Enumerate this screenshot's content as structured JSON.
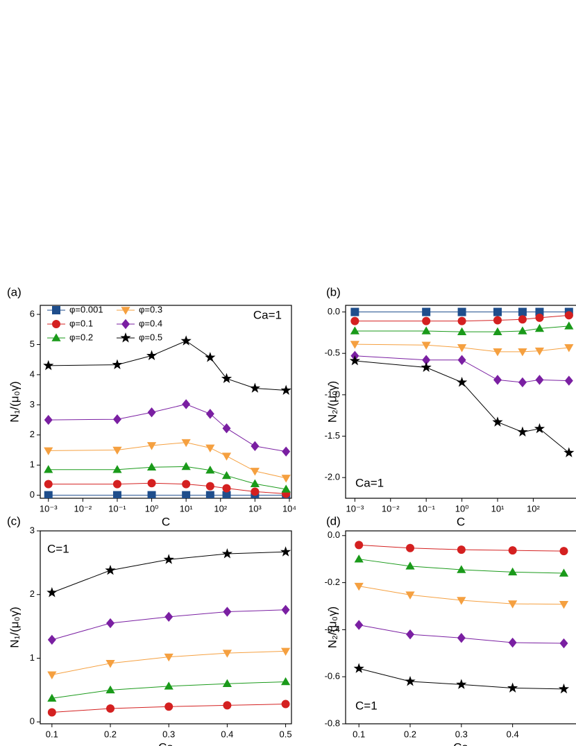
{
  "chart_data": [
    {
      "type": "line",
      "panel_label": "(a)",
      "x_label": "C",
      "y_label": "N₁/(μ₀γ̇)",
      "annotation": "Ca=1",
      "log_x": true,
      "legend": "top-left",
      "x": [
        0.001,
        0.1,
        1,
        10,
        50,
        150,
        1000,
        8000
      ],
      "xlim": [
        0.00058,
        11500
      ],
      "ylim": [
        -0.1,
        6.3
      ],
      "xticks": [
        {
          "value": 0.001,
          "label": "10⁻³"
        },
        {
          "value": 0.01,
          "label": "10⁻²"
        },
        {
          "value": 0.1,
          "label": "10⁻¹"
        },
        {
          "value": 1,
          "label": "10⁰"
        },
        {
          "value": 10,
          "label": "10¹"
        },
        {
          "value": 100,
          "label": "10²"
        },
        {
          "value": 1000,
          "label": "10³"
        },
        {
          "value": 10000,
          "label": "10⁴"
        }
      ],
      "yticks": [
        0,
        1,
        2,
        3,
        4,
        5,
        6
      ],
      "series": [
        {
          "name": "φ=0.001",
          "color": "#1f4e8c",
          "marker": "square",
          "values": [
            0,
            0,
            0,
            0,
            0,
            0,
            0,
            0
          ]
        },
        {
          "name": "φ=0.1",
          "color": "#d42020",
          "marker": "circle",
          "values": [
            0.37,
            0.37,
            0.4,
            0.37,
            0.3,
            0.23,
            0.12,
            0.05
          ]
        },
        {
          "name": "φ=0.2",
          "color": "#1a9a1a",
          "marker": "triangle-up",
          "values": [
            0.85,
            0.85,
            0.93,
            0.95,
            0.83,
            0.65,
            0.38,
            0.2
          ]
        },
        {
          "name": "φ=0.3",
          "color": "#f5a040",
          "marker": "triangle-down",
          "values": [
            1.48,
            1.5,
            1.65,
            1.75,
            1.57,
            1.3,
            0.8,
            0.57
          ]
        },
        {
          "name": "φ=0.4",
          "color": "#7a1fa2",
          "marker": "diamond",
          "values": [
            2.5,
            2.52,
            2.75,
            3.02,
            2.7,
            2.22,
            1.63,
            1.45
          ]
        },
        {
          "name": "φ=0.5",
          "color": "#000000",
          "marker": "star",
          "values": [
            4.3,
            4.33,
            4.63,
            5.12,
            4.57,
            3.87,
            3.55,
            3.48
          ]
        }
      ]
    },
    {
      "type": "line",
      "panel_label": "(b)",
      "x_label": "C",
      "y_label": "N₂/(μ₀γ̇)",
      "annotation": "Ca=1",
      "log_x": true,
      "x": [
        0.001,
        0.1,
        1,
        10,
        50,
        150,
        1000
      ],
      "xlim": [
        0.00055,
        2700
      ],
      "ylim": [
        -2.25,
        0.08
      ],
      "xticks": [
        {
          "value": 0.001,
          "label": "10⁻³"
        },
        {
          "value": 0.01,
          "label": "10⁻²"
        },
        {
          "value": 0.1,
          "label": "10⁻¹"
        },
        {
          "value": 1,
          "label": "10⁰"
        },
        {
          "value": 10,
          "label": "10¹"
        },
        {
          "value": 100,
          "label": "10²"
        }
      ],
      "yticks": [
        {
          "value": 0,
          "label": "0.0"
        },
        -0.5,
        {
          "value": -1,
          "label": "-1.0"
        },
        -1.5,
        {
          "value": -2,
          "label": "-2.0"
        }
      ],
      "series": [
        {
          "color": "#1f4e8c",
          "marker": "square",
          "values": [
            0,
            0,
            0,
            0,
            0,
            0,
            0
          ]
        },
        {
          "color": "#d42020",
          "marker": "circle",
          "values": [
            -0.11,
            -0.11,
            -0.11,
            -0.1,
            -0.09,
            -0.07,
            -0.04
          ]
        },
        {
          "color": "#1a9a1a",
          "marker": "triangle-up",
          "values": [
            -0.23,
            -0.23,
            -0.24,
            -0.24,
            -0.23,
            -0.2,
            -0.17
          ]
        },
        {
          "color": "#f5a040",
          "marker": "triangle-down",
          "values": [
            -0.39,
            -0.4,
            -0.43,
            -0.48,
            -0.48,
            -0.47,
            -0.43
          ]
        },
        {
          "color": "#7a1fa2",
          "marker": "diamond",
          "values": [
            -0.53,
            -0.58,
            -0.58,
            -0.82,
            -0.85,
            -0.82,
            -0.83
          ]
        },
        {
          "color": "#000000",
          "marker": "star",
          "values": [
            -0.59,
            -0.67,
            -0.85,
            -1.33,
            -1.45,
            -1.41,
            -1.7
          ]
        }
      ]
    },
    {
      "type": "line",
      "panel_label": "(c)",
      "x_label": "Ca",
      "y_label": "N₁/(μ₀γ̇)",
      "annotation": "C=1",
      "log_x": false,
      "x": [
        0.1,
        0.2,
        0.3,
        0.4,
        0.5
      ],
      "xlim": [
        0.08,
        0.51
      ],
      "ylim": [
        -0.03,
        3
      ],
      "xticks": [
        0.1,
        0.2,
        0.3,
        0.4,
        0.5
      ],
      "yticks": [
        0,
        1,
        2,
        3
      ],
      "series": [
        {
          "color": "#d42020",
          "marker": "circle",
          "values": [
            0.15,
            0.21,
            0.24,
            0.26,
            0.28
          ]
        },
        {
          "color": "#1a9a1a",
          "marker": "triangle-up",
          "values": [
            0.37,
            0.5,
            0.56,
            0.6,
            0.63
          ]
        },
        {
          "color": "#f5a040",
          "marker": "triangle-down",
          "values": [
            0.74,
            0.92,
            1.02,
            1.08,
            1.11
          ]
        },
        {
          "color": "#7a1fa2",
          "marker": "diamond",
          "values": [
            1.29,
            1.55,
            1.65,
            1.73,
            1.76
          ]
        },
        {
          "color": "#000000",
          "marker": "star",
          "values": [
            2.03,
            2.38,
            2.55,
            2.64,
            2.67
          ]
        }
      ]
    },
    {
      "type": "line",
      "panel_label": "(d)",
      "x_label": "Ca",
      "y_label": "N₂/(μ₀γ̇)",
      "annotation": "C=1",
      "log_x": false,
      "x": [
        0.1,
        0.2,
        0.3,
        0.4,
        0.5
      ],
      "xlim": [
        0.074,
        0.54
      ],
      "ylim": [
        -0.8,
        0.02
      ],
      "xticks": [
        0.1,
        0.2,
        0.3,
        0.4
      ],
      "yticks": [
        {
          "value": 0,
          "label": "0.0"
        },
        -0.2,
        -0.4,
        -0.6,
        -0.8
      ],
      "series": [
        {
          "color": "#d42020",
          "marker": "circle",
          "values": [
            -0.04,
            -0.053,
            -0.06,
            -0.063,
            -0.066
          ]
        },
        {
          "color": "#1a9a1a",
          "marker": "triangle-up",
          "values": [
            -0.1,
            -0.13,
            -0.145,
            -0.155,
            -0.16
          ]
        },
        {
          "color": "#f5a040",
          "marker": "triangle-down",
          "values": [
            -0.215,
            -0.252,
            -0.275,
            -0.29,
            -0.292
          ]
        },
        {
          "color": "#7a1fa2",
          "marker": "diamond",
          "values": [
            -0.38,
            -0.42,
            -0.435,
            -0.455,
            -0.458
          ]
        },
        {
          "color": "#000000",
          "marker": "star",
          "values": [
            -0.565,
            -0.62,
            -0.633,
            -0.648,
            -0.652
          ]
        }
      ]
    }
  ]
}
